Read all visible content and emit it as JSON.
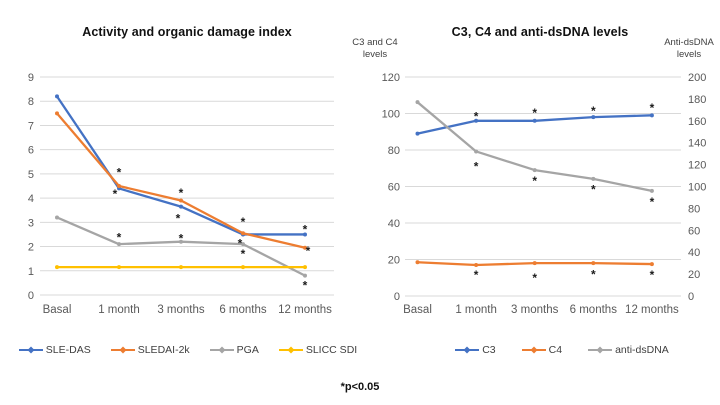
{
  "footnote": "*p<0.05",
  "chart_data": [
    {
      "type": "line",
      "title": "Activity and organic damage index",
      "categories": [
        "Basal",
        "1 month",
        "3 months",
        "6 months",
        "12 months"
      ],
      "y_axis": {
        "min": 0,
        "max": 9,
        "step": 1
      },
      "grid": true,
      "legend_position": "bottom",
      "series": [
        {
          "name": "SLE-DAS",
          "color": "#4472C4",
          "values": [
            8.2,
            4.4,
            3.65,
            2.5,
            2.5
          ]
        },
        {
          "name": "SLEDAI-2k",
          "color": "#ED7D31",
          "values": [
            7.5,
            4.5,
            3.9,
            2.55,
            1.95
          ]
        },
        {
          "name": "PGA",
          "color": "#A5A5A5",
          "values": [
            3.2,
            2.1,
            2.2,
            2.1,
            0.8
          ]
        },
        {
          "name": "SLICC SDI",
          "color": "#FFC000",
          "values": [
            1.15,
            1.15,
            1.15,
            1.15,
            1.15
          ]
        }
      ],
      "significance_marks": [
        {
          "cat": 1,
          "value": 5.15
        },
        {
          "cat": 1,
          "value": 4.25,
          "dx": -4
        },
        {
          "cat": 1,
          "value": 2.45
        },
        {
          "cat": 2,
          "value": 4.3
        },
        {
          "cat": 2,
          "value": 3.25,
          "dx": -3
        },
        {
          "cat": 2,
          "value": 2.42
        },
        {
          "cat": 3,
          "value": 3.1
        },
        {
          "cat": 3,
          "value": 2.2,
          "dx": -3
        },
        {
          "cat": 3,
          "value": 1.78
        },
        {
          "cat": 4,
          "value": 2.78
        },
        {
          "cat": 4,
          "value": 1.9,
          "dx": 3
        },
        {
          "cat": 4,
          "value": 0.48
        }
      ]
    },
    {
      "type": "line",
      "title": "C3, C4 and anti-dsDNA levels",
      "left_axis_title": "C3 and C4 levels",
      "right_axis_title": "Anti-dsDNA levels",
      "categories": [
        "Basal",
        "1 month",
        "3 months",
        "6 months",
        "12 months"
      ],
      "left_axis": {
        "min": 0,
        "max": 120,
        "step": 20
      },
      "right_axis": {
        "min": 0,
        "max": 200,
        "step": 20
      },
      "grid": true,
      "legend_position": "bottom",
      "series": [
        {
          "name": "C3",
          "color": "#4472C4",
          "axis": "left",
          "values": [
            89,
            96,
            96,
            98,
            99
          ]
        },
        {
          "name": "C4",
          "color": "#ED7D31",
          "axis": "left",
          "values": [
            18.5,
            17,
            18,
            18,
            17.5
          ]
        },
        {
          "name": "anti-dsDNA",
          "color": "#A5A5A5",
          "axis": "right",
          "values": [
            177,
            132,
            115,
            107,
            96
          ]
        }
      ],
      "significance_marks": [
        {
          "cat": 1,
          "value": 99.5
        },
        {
          "cat": 2,
          "value": 101.5
        },
        {
          "cat": 3,
          "value": 102.5
        },
        {
          "cat": 4,
          "value": 104
        },
        {
          "cat": 1,
          "value": 72
        },
        {
          "cat": 2,
          "value": 64
        },
        {
          "cat": 3,
          "value": 59.5
        },
        {
          "cat": 4,
          "value": 52.5
        },
        {
          "cat": 1,
          "value": 12.5
        },
        {
          "cat": 2,
          "value": 11
        },
        {
          "cat": 3,
          "value": 13
        },
        {
          "cat": 4,
          "value": 12.5
        }
      ]
    }
  ]
}
